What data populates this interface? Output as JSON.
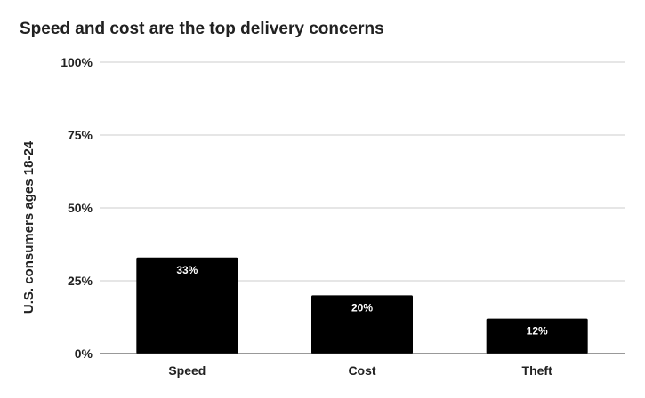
{
  "chart_data": {
    "type": "bar",
    "title": "Speed and cost are the top delivery concerns",
    "xlabel": "",
    "ylabel": "U.S. consumers ages 18-24",
    "categories": [
      "Speed",
      "Cost",
      "Theft"
    ],
    "values": [
      33,
      20,
      12
    ],
    "data_labels": [
      "33%",
      "20%",
      "12%"
    ],
    "ylim": [
      0,
      100
    ],
    "yticks": [
      0,
      25,
      50,
      75,
      100
    ],
    "ytick_labels": [
      "0%",
      "25%",
      "50%",
      "75%",
      "100%"
    ],
    "grid": true,
    "legend": "none",
    "bar_color": "#000000",
    "grid_color": "#cccccc"
  }
}
